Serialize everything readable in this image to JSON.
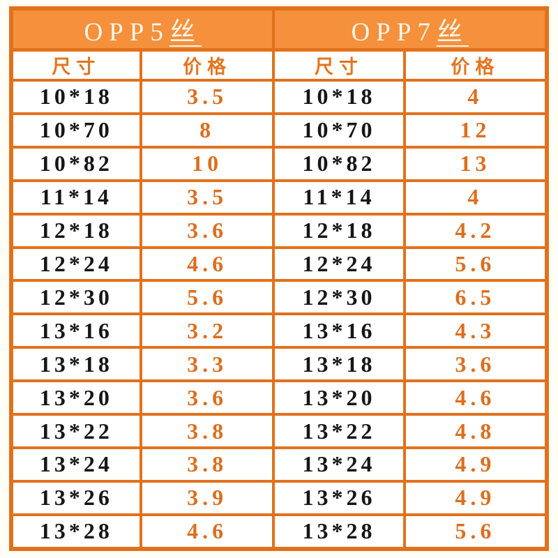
{
  "colors": {
    "page_background": "#fffef6",
    "grid_border": "#e2711c",
    "header_background": "#f5903c",
    "header_text": "#fbf5ea",
    "subheader_text": "#e4751f",
    "size_text": "#161616",
    "price_text": "#dd6e1e"
  },
  "tables": [
    {
      "title": "OPP5丝",
      "title_prefix": "OPP5",
      "title_unit": "丝",
      "col_headers": {
        "size": "尺寸",
        "price": "价格"
      },
      "rows": [
        {
          "size": "10*18",
          "price": "3.5"
        },
        {
          "size": "10*70",
          "price": "8"
        },
        {
          "size": "10*82",
          "price": "10"
        },
        {
          "size": "11*14",
          "price": "3.5"
        },
        {
          "size": "12*18",
          "price": "3.6"
        },
        {
          "size": "12*24",
          "price": "4.6"
        },
        {
          "size": "12*30",
          "price": "5.6"
        },
        {
          "size": "13*16",
          "price": "3.2"
        },
        {
          "size": "13*18",
          "price": "3.3"
        },
        {
          "size": "13*20",
          "price": "3.6"
        },
        {
          "size": "13*22",
          "price": "3.8"
        },
        {
          "size": "13*24",
          "price": "3.8"
        },
        {
          "size": "13*26",
          "price": "3.9"
        },
        {
          "size": "13*28",
          "price": "4.6"
        }
      ]
    },
    {
      "title": "OPP7丝",
      "title_prefix": "OPP7",
      "title_unit": "丝",
      "col_headers": {
        "size": "尺寸",
        "price": "价格"
      },
      "rows": [
        {
          "size": "10*18",
          "price": "4"
        },
        {
          "size": "10*70",
          "price": "12"
        },
        {
          "size": "10*82",
          "price": "13"
        },
        {
          "size": "11*14",
          "price": "4"
        },
        {
          "size": "12*18",
          "price": "4.2"
        },
        {
          "size": "12*24",
          "price": "5.6"
        },
        {
          "size": "12*30",
          "price": "6.5"
        },
        {
          "size": "13*16",
          "price": "4.3"
        },
        {
          "size": "13*18",
          "price": "3.6"
        },
        {
          "size": "13*20",
          "price": "4.6"
        },
        {
          "size": "13*22",
          "price": "4.8"
        },
        {
          "size": "13*24",
          "price": "4.9"
        },
        {
          "size": "13*26",
          "price": "4.9"
        },
        {
          "size": "13*28",
          "price": "5.6"
        }
      ]
    }
  ],
  "chart_data": [
    {
      "type": "table",
      "title": "OPP5丝",
      "columns": [
        "尺寸",
        "价格"
      ],
      "rows": [
        [
          "10*18",
          3.5
        ],
        [
          "10*70",
          8
        ],
        [
          "10*82",
          10
        ],
        [
          "11*14",
          3.5
        ],
        [
          "12*18",
          3.6
        ],
        [
          "12*24",
          4.6
        ],
        [
          "12*30",
          5.6
        ],
        [
          "13*16",
          3.2
        ],
        [
          "13*18",
          3.3
        ],
        [
          "13*20",
          3.6
        ],
        [
          "13*22",
          3.8
        ],
        [
          "13*24",
          3.8
        ],
        [
          "13*26",
          3.9
        ],
        [
          "13*28",
          4.6
        ]
      ]
    },
    {
      "type": "table",
      "title": "OPP7丝",
      "columns": [
        "尺寸",
        "价格"
      ],
      "rows": [
        [
          "10*18",
          4
        ],
        [
          "10*70",
          12
        ],
        [
          "10*82",
          13
        ],
        [
          "11*14",
          4
        ],
        [
          "12*18",
          4.2
        ],
        [
          "12*24",
          5.6
        ],
        [
          "12*30",
          6.5
        ],
        [
          "13*16",
          4.3
        ],
        [
          "13*18",
          3.6
        ],
        [
          "13*20",
          4.6
        ],
        [
          "13*22",
          4.8
        ],
        [
          "13*24",
          4.9
        ],
        [
          "13*26",
          4.9
        ],
        [
          "13*28",
          5.6
        ]
      ]
    }
  ]
}
